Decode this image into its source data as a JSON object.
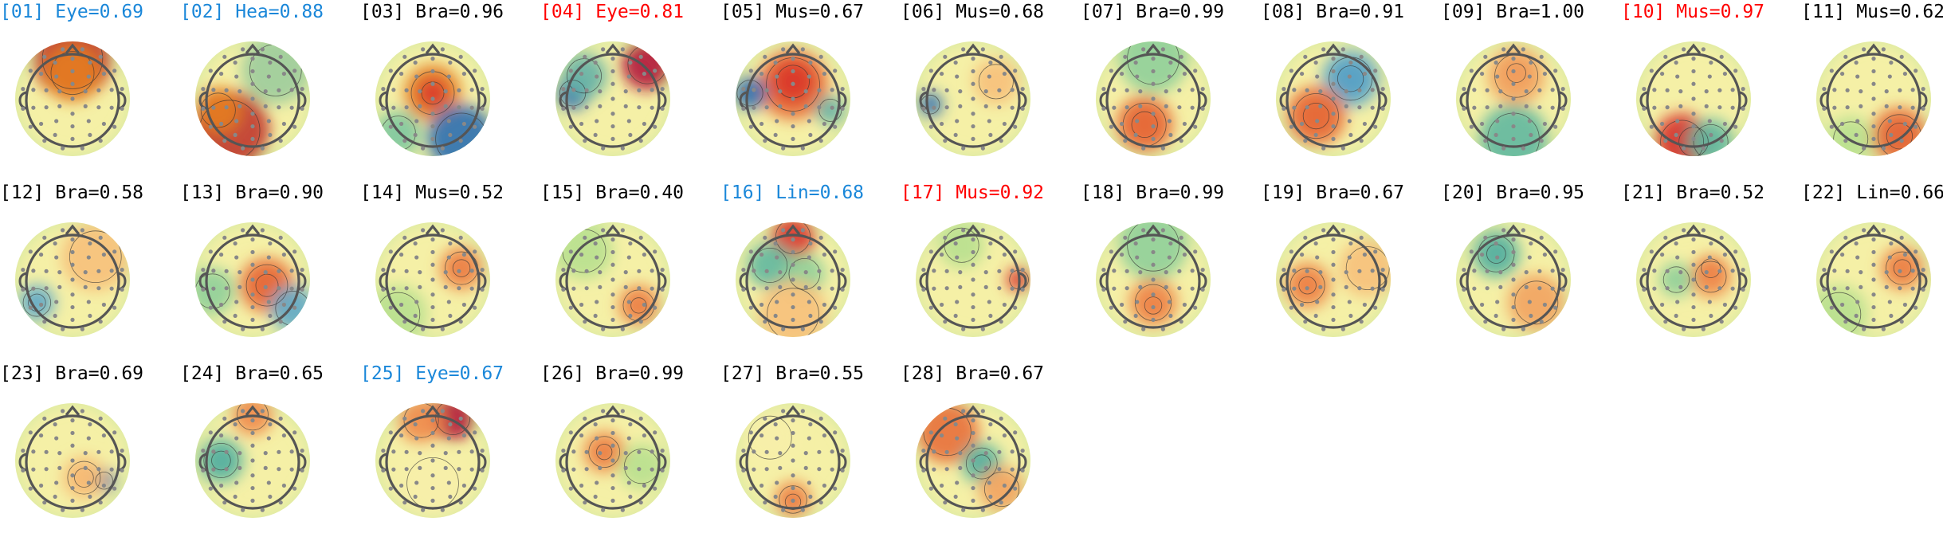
{
  "colors": {
    "black": "#000000",
    "blue": "#1a87d9",
    "red": "#ff0000",
    "label_color_note": ""
  },
  "components": [
    {
      "label": "[01] Eye=0.69",
      "color": "blue",
      "pattern": "frontal-red"
    },
    {
      "label": "[02] Hea=0.88",
      "color": "blue",
      "pattern": "left-red-band"
    },
    {
      "label": "[03] Bra=0.96",
      "color": "black",
      "pattern": "central-red"
    },
    {
      "label": "[04] Eye=0.81",
      "color": "red",
      "pattern": "right-frontal-red"
    },
    {
      "label": "[05] Mus=0.67",
      "color": "black",
      "pattern": "broad-red-upper"
    },
    {
      "label": "[06] Mus=0.68",
      "color": "black",
      "pattern": "diffuse"
    },
    {
      "label": "[07] Bra=0.99",
      "color": "black",
      "pattern": "left-posterior-red"
    },
    {
      "label": "[08] Bra=0.91",
      "color": "black",
      "pattern": "dipole"
    },
    {
      "label": "[09] Bra=1.00",
      "color": "black",
      "pattern": "central-red-small"
    },
    {
      "label": "[10] Mus=0.97",
      "color": "red",
      "pattern": "bottom-blue-red"
    },
    {
      "label": "[11] Mus=0.62",
      "color": "black",
      "pattern": "bottom-right-red"
    },
    {
      "label": "[12] Bra=0.58",
      "color": "black",
      "pattern": "left-blue"
    },
    {
      "label": "[13] Bra=0.90",
      "color": "black",
      "pattern": "right-central-red"
    },
    {
      "label": "[14] Mus=0.52",
      "color": "black",
      "pattern": "right-red"
    },
    {
      "label": "[15] Bra=0.40",
      "color": "black",
      "pattern": "right-posterior-red"
    },
    {
      "label": "[16] Lin=0.68",
      "color": "blue",
      "pattern": "frontal-mixed"
    },
    {
      "label": "[17] Mus=0.92",
      "color": "red",
      "pattern": "diffuse-right"
    },
    {
      "label": "[18] Bra=0.99",
      "color": "black",
      "pattern": "posterior-red"
    },
    {
      "label": "[19] Bra=0.67",
      "color": "black",
      "pattern": "left-red"
    },
    {
      "label": "[20] Bra=0.95",
      "color": "black",
      "pattern": "left-frontal-blue"
    },
    {
      "label": "[21] Bra=0.52",
      "color": "black",
      "pattern": "right-red-left-green"
    },
    {
      "label": "[22] Lin=0.66",
      "color": "black",
      "pattern": "right-red"
    },
    {
      "label": "[23] Bra=0.69",
      "color": "black",
      "pattern": "posterior-dipole"
    },
    {
      "label": "[24] Bra=0.65",
      "color": "black",
      "pattern": "left-blue-frontal-red"
    },
    {
      "label": "[25] Eye=0.67",
      "color": "blue",
      "pattern": "frontal-red-right"
    },
    {
      "label": "[26] Bra=0.99",
      "color": "black",
      "pattern": "left-central-red"
    },
    {
      "label": "[27] Bra=0.55",
      "color": "black",
      "pattern": "occipital-red"
    },
    {
      "label": "[28] Bra=0.67",
      "color": "black",
      "pattern": "broad-red-blue-center"
    }
  ]
}
